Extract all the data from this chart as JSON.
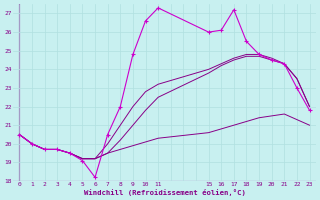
{
  "title": "Windchill (Refroidissement éolien,°C)",
  "bg_color": "#c8f0f0",
  "grid_color": "#b0e0e0",
  "line_color": "#880088",
  "line_color2": "#cc00cc",
  "xlim": [
    -0.5,
    23.5
  ],
  "ylim": [
    18,
    27.5
  ],
  "xticks": [
    0,
    1,
    2,
    3,
    4,
    5,
    6,
    7,
    8,
    9,
    10,
    11,
    15,
    16,
    17,
    18,
    19,
    20,
    21,
    22,
    23
  ],
  "yticks": [
    18,
    19,
    20,
    21,
    22,
    23,
    24,
    25,
    26,
    27
  ],
  "hours_main": [
    0,
    1,
    2,
    3,
    4,
    5,
    6,
    7,
    8,
    9,
    10,
    11,
    15,
    16,
    17,
    18,
    19,
    20,
    21,
    22,
    23
  ],
  "series1": [
    20.5,
    20.0,
    19.7,
    19.7,
    19.5,
    19.1,
    18.2,
    20.5,
    22.0,
    24.8,
    26.6,
    27.3,
    26.0,
    26.1,
    27.2,
    25.5,
    24.8,
    24.5,
    24.3,
    23.0,
    21.8
  ],
  "hours_smooth": [
    0,
    1,
    2,
    3,
    4,
    5,
    6,
    7,
    8,
    9,
    10,
    11,
    15,
    16,
    17,
    18,
    19,
    20,
    21,
    22,
    23
  ],
  "series2": [
    20.5,
    20.0,
    19.7,
    19.7,
    19.5,
    19.2,
    19.2,
    19.5,
    19.7,
    19.9,
    20.1,
    20.3,
    20.6,
    20.8,
    21.0,
    21.2,
    21.4,
    21.5,
    21.6,
    21.3,
    21.0
  ],
  "series3": [
    20.5,
    20.0,
    19.7,
    19.7,
    19.5,
    19.2,
    19.2,
    19.5,
    20.2,
    21.0,
    21.8,
    22.5,
    23.8,
    24.2,
    24.5,
    24.7,
    24.7,
    24.5,
    24.3,
    23.5,
    22.0
  ],
  "series4": [
    20.5,
    20.0,
    19.7,
    19.7,
    19.5,
    19.2,
    19.2,
    20.0,
    21.0,
    22.0,
    22.8,
    23.2,
    24.0,
    24.3,
    24.6,
    24.8,
    24.8,
    24.6,
    24.3,
    23.5,
    22.0
  ]
}
